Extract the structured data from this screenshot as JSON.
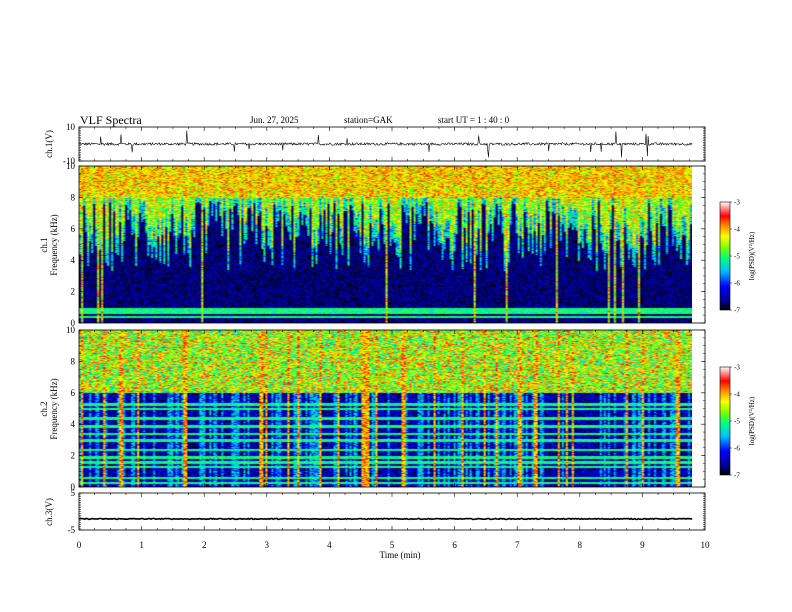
{
  "header": {
    "title": "VLF  Spectra",
    "date": "Jun. 27, 2025",
    "station": "station=GAK",
    "start": "start  UT  =   1  : 40 : 0"
  },
  "colorbar": {
    "label": "log(PSD)(V²/Hz)",
    "ticks": [
      "-3",
      "-4",
      "-5",
      "-6",
      "-7"
    ]
  },
  "chart_data": [
    {
      "type": "line",
      "panel": "ch1-waveform",
      "ylabel": "ch.1(V)",
      "ylim": [
        -10,
        10
      ],
      "yticks": [
        "10",
        "-10"
      ],
      "baseline": 0,
      "amplitude_typical": 1.5
    },
    {
      "type": "heatmap",
      "panel": "ch1-spectrogram",
      "ylabel": "ch.1\nFrequency  (kHz)",
      "ylim": [
        0,
        10
      ],
      "yticks": [
        "0",
        "2",
        "4",
        "6",
        "8",
        "10"
      ],
      "x_range_min": [
        0,
        9.8
      ],
      "color_scale": "log(PSD)(V²/Hz)",
      "color_range": [
        -7,
        -3
      ]
    },
    {
      "type": "heatmap",
      "panel": "ch2-spectrogram",
      "ylabel": "ch.2\nFrequency  (kHz)",
      "ylim": [
        0,
        10
      ],
      "yticks": [
        "0",
        "2",
        "4",
        "6",
        "8",
        "10"
      ],
      "x_range_min": [
        0,
        9.8
      ],
      "color_scale": "log(PSD)(V²/Hz)",
      "color_range": [
        -7,
        -3
      ]
    },
    {
      "type": "line",
      "panel": "ch3-waveform",
      "ylabel": "ch.3(V)",
      "ylim": [
        -5,
        5
      ],
      "yticks": [
        "5",
        "-5"
      ],
      "baseline": -2
    }
  ],
  "xaxis": {
    "label": "Time  (min)",
    "ticks": [
      "0",
      "1",
      "2",
      "3",
      "4",
      "5",
      "6",
      "7",
      "8",
      "9",
      "10"
    ],
    "xlim": [
      0,
      10
    ]
  },
  "colors": {
    "scale": [
      "#000000",
      "#00008b",
      "#0000ff",
      "#00bfff",
      "#00ff7f",
      "#7fff00",
      "#ffff00",
      "#ff8c00",
      "#ff0000",
      "#ffffff"
    ]
  }
}
